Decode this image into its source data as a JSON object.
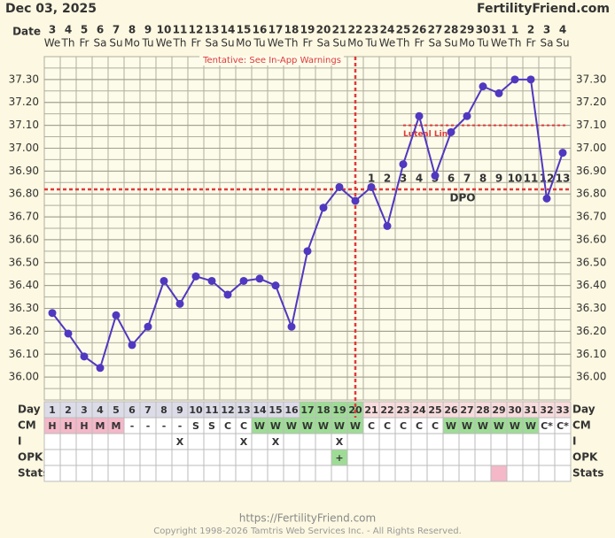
{
  "chart_data": {
    "type": "line",
    "title": "Dec 03, 2025",
    "site": "FertilityFriend.com",
    "date_label": "Date",
    "dates": [
      "3",
      "4",
      "5",
      "6",
      "7",
      "8",
      "9",
      "10",
      "11",
      "12",
      "13",
      "14",
      "15",
      "16",
      "17",
      "18",
      "19",
      "20",
      "21",
      "22",
      "23",
      "24",
      "25",
      "26",
      "27",
      "28",
      "29",
      "30",
      "31",
      "1",
      "2",
      "3",
      "4"
    ],
    "weekdays": [
      "We",
      "Th",
      "Fr",
      "Sa",
      "Su",
      "Mo",
      "Tu",
      "We",
      "Th",
      "Fr",
      "Sa",
      "Su",
      "Mo",
      "Tu",
      "We",
      "Th",
      "Fr",
      "Sa",
      "Su",
      "Mo",
      "Tu",
      "We",
      "Th",
      "Fr",
      "Sa",
      "Su",
      "Mo",
      "Tu",
      "We",
      "Th",
      "Fr",
      "Sa",
      "Su"
    ],
    "categories": [
      1,
      2,
      3,
      4,
      5,
      6,
      7,
      8,
      9,
      10,
      11,
      12,
      13,
      14,
      15,
      16,
      17,
      18,
      19,
      20,
      21,
      22,
      23,
      24,
      25,
      26,
      27,
      28,
      29,
      30,
      31,
      32,
      33
    ],
    "series": [
      {
        "name": "Temperature",
        "color": "#5038c0",
        "values": [
          36.28,
          36.19,
          36.09,
          36.04,
          36.27,
          36.14,
          36.22,
          36.42,
          36.32,
          36.44,
          36.42,
          36.36,
          36.42,
          36.43,
          36.4,
          36.22,
          36.55,
          36.74,
          36.83,
          36.77,
          36.83,
          36.66,
          36.93,
          37.14,
          36.88,
          37.07,
          37.14,
          37.27,
          37.24,
          37.3,
          37.3,
          36.78,
          36.98
        ]
      }
    ],
    "ylim": [
      35.9,
      37.4
    ],
    "yticks": [
      {
        "value": 36.0,
        "label": "36.00"
      },
      {
        "value": 36.1,
        "label": "36.10"
      },
      {
        "value": 36.2,
        "label": "36.20"
      },
      {
        "value": 36.3,
        "label": "36.30"
      },
      {
        "value": 36.4,
        "label": "36.40"
      },
      {
        "value": 36.5,
        "label": "36.50"
      },
      {
        "value": 36.6,
        "label": "36.60"
      },
      {
        "value": 36.7,
        "label": "36.70"
      },
      {
        "value": 36.8,
        "label": "36.80"
      },
      {
        "value": 36.9,
        "label": "36.90"
      },
      {
        "value": 37.0,
        "label": "37.00"
      },
      {
        "value": 37.1,
        "label": "37.10"
      },
      {
        "value": 37.2,
        "label": "37.20"
      },
      {
        "value": 37.3,
        "label": "37.30"
      }
    ],
    "grid": true,
    "warning": "Tentative: See In-App Warnings",
    "coverline": 36.82,
    "ovulation_day": 20,
    "luteal_line": {
      "label": "Luteal Line",
      "value": 37.1,
      "start_day": 23
    },
    "dpo_label": "DPO",
    "dpo": [
      null,
      null,
      null,
      null,
      null,
      null,
      null,
      null,
      null,
      null,
      null,
      null,
      null,
      null,
      null,
      null,
      null,
      null,
      null,
      null,
      1,
      2,
      3,
      4,
      5,
      6,
      7,
      8,
      9,
      10,
      11,
      12,
      13
    ],
    "line_color": "#e03a3a",
    "day_label": "Day",
    "day_colors": [
      "#dcdce8",
      "#dcdce8",
      "#dcdce8",
      "#dcdce8",
      "#dcdce8",
      "#dcdce8",
      "#dcdce8",
      "#dcdce8",
      "#dcdce8",
      "#dcdce8",
      "#dcdce8",
      "#dcdce8",
      "#dcdce8",
      "#dcdce8",
      "#dcdce8",
      "#dcdce8",
      "#9edc96",
      "#9edc96",
      "#9edc96",
      "#9edc96",
      "#f8dcdc",
      "#f8dcdc",
      "#f8dcdc",
      "#f8dcdc",
      "#f8dcdc",
      "#f8dcdc",
      "#f8dcdc",
      "#f8dcdc",
      "#f8dcdc",
      "#f8dcdc",
      "#f8dcdc",
      "#f8dcdc",
      "#f8dcdc"
    ],
    "rows": [
      {
        "label": "CM",
        "values": [
          "H",
          "H",
          "H",
          "M",
          "M",
          "-",
          "-",
          "-",
          "-",
          "S",
          "S",
          "C",
          "C",
          "W",
          "W",
          "W",
          "W",
          "W",
          "W",
          "W",
          "C",
          "C",
          "C",
          "C",
          "C",
          "W",
          "W",
          "W",
          "W",
          "W",
          "W",
          "C*",
          "C*"
        ]
      },
      {
        "label": "I",
        "values": [
          null,
          null,
          null,
          null,
          null,
          null,
          null,
          null,
          "X",
          null,
          null,
          null,
          "X",
          null,
          "X",
          null,
          null,
          null,
          "X",
          null,
          null,
          null,
          null,
          null,
          null,
          null,
          null,
          null,
          null,
          null,
          null,
          null,
          null
        ]
      },
      {
        "label": "OPK",
        "values": [
          null,
          null,
          null,
          null,
          null,
          null,
          null,
          null,
          null,
          null,
          null,
          null,
          null,
          null,
          null,
          null,
          null,
          null,
          "+",
          null,
          null,
          null,
          null,
          null,
          null,
          null,
          null,
          null,
          null,
          null,
          null,
          null,
          null
        ]
      },
      {
        "label": "Stats",
        "values": [
          null,
          null,
          null,
          null,
          null,
          null,
          null,
          null,
          null,
          null,
          null,
          null,
          null,
          null,
          null,
          null,
          null,
          null,
          null,
          null,
          null,
          null,
          null,
          null,
          null,
          null,
          null,
          null,
          null,
          null,
          null,
          null,
          null
        ]
      }
    ],
    "cell_colors": {
      "H": "#f4b8c8",
      "M": "#f4b8c8",
      "W": "#9edc96",
      "+": "#9edc96"
    },
    "stats_colors": [
      null,
      null,
      null,
      null,
      null,
      null,
      null,
      null,
      null,
      null,
      null,
      null,
      null,
      null,
      null,
      null,
      null,
      null,
      null,
      null,
      null,
      null,
      null,
      null,
      null,
      null,
      null,
      null,
      "#f4b8c8",
      null,
      null,
      null,
      null
    ],
    "footer_url": "https://FertilityFriend.com",
    "copyright": "Copyright 1998-2026 Tamtris Web Services Inc. - All Rights Reserved."
  }
}
